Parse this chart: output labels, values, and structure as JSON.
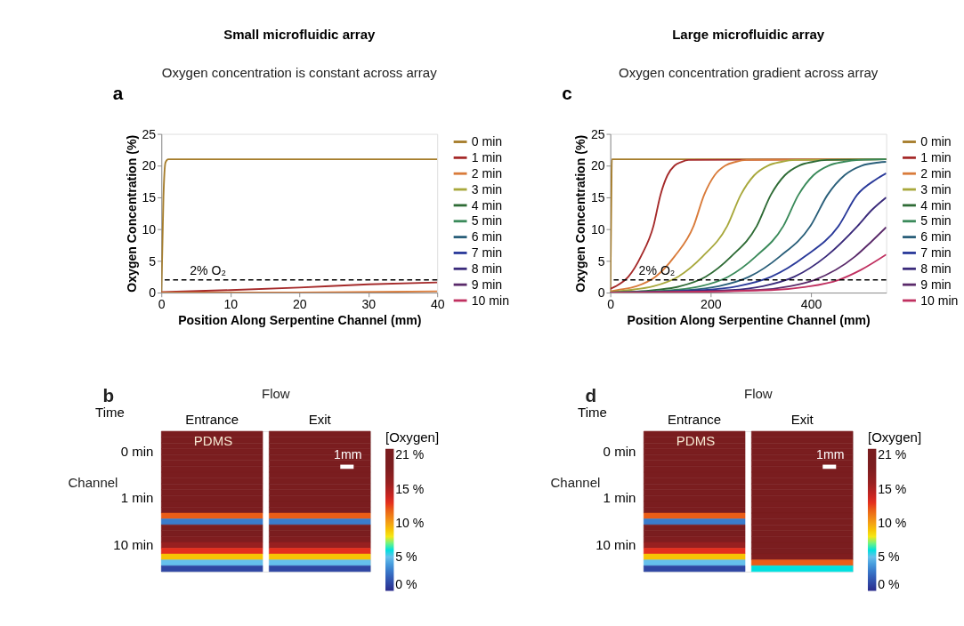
{
  "chart_data": [
    {
      "type": "line",
      "title": "Small microfluidic array",
      "subtitle": "Oxygen concentration is constant across array",
      "xlabel": "Position Along Serpentine Channel (mm)",
      "ylabel": "Oxygen Concentration (%)",
      "xlim": [
        0,
        40
      ],
      "xticks": [
        0,
        10,
        20,
        30,
        40
      ],
      "ylim": [
        0,
        25
      ],
      "yticks": [
        0,
        5,
        10,
        15,
        20,
        25
      ],
      "grid": false,
      "legend": "right",
      "marker": "none",
      "line_style": "solid",
      "annotations": [
        "a"
      ],
      "ref_lines": [
        {
          "axis": "y",
          "value": 2,
          "label": "2% O₂",
          "color": "#000000",
          "line_style": "dashed"
        }
      ],
      "series": [
        {
          "name": "0 min",
          "color": "#a57c2a",
          "x": [
            0,
            0.3,
            0.6,
            1,
            40
          ],
          "values": [
            0,
            15,
            20.5,
            21,
            21
          ]
        },
        {
          "name": "1 min",
          "color": "#a52a2a",
          "x": [
            0,
            10,
            20,
            30,
            40
          ],
          "values": [
            0.1,
            0.4,
            0.8,
            1.3,
            1.6
          ]
        },
        {
          "name": "2 min",
          "color": "#d97b3a",
          "x": [
            0,
            20,
            40
          ],
          "values": [
            0,
            0,
            0.2
          ]
        },
        {
          "name": "3 min",
          "color": "#a8a83c",
          "values": [
            null
          ]
        },
        {
          "name": "4 min",
          "color": "#2e6b35",
          "values": [
            null
          ]
        },
        {
          "name": "5 min",
          "color": "#3a8a5a",
          "values": [
            null
          ]
        },
        {
          "name": "6 min",
          "color": "#2a5f7a",
          "values": [
            null
          ]
        },
        {
          "name": "7 min",
          "color": "#2a3a9a",
          "values": [
            null
          ]
        },
        {
          "name": "8 min",
          "color": "#3a2a7a",
          "values": [
            null
          ]
        },
        {
          "name": "9 min",
          "color": "#5a2a6a",
          "values": [
            null
          ]
        },
        {
          "name": "10 min",
          "color": "#c03060",
          "values": [
            null
          ]
        }
      ]
    },
    {
      "type": "line",
      "title": "Large microfluidic array",
      "subtitle": "Oxygen concentration gradient across array",
      "xlabel": "Position Along Serpentine Channel (mm)",
      "ylabel": "Oxygen Concentration (%)",
      "xlim": [
        0,
        550
      ],
      "xticks": [
        0,
        200,
        400
      ],
      "ylim": [
        0,
        25
      ],
      "yticks": [
        0,
        5,
        10,
        15,
        20,
        25
      ],
      "grid": false,
      "legend": "right",
      "marker": "none",
      "line_style": "solid",
      "annotations": [
        "c"
      ],
      "ref_lines": [
        {
          "axis": "y",
          "value": 2,
          "label": "2% O₂",
          "color": "#000000",
          "line_style": "dashed"
        }
      ],
      "series": [
        {
          "name": "0 min",
          "color": "#a57c2a",
          "x": [
            0,
            2,
            3,
            550
          ],
          "values": [
            0,
            15,
            21,
            21
          ]
        },
        {
          "name": "1 min",
          "color": "#a52a2a",
          "x": [
            0,
            11,
            36,
            61,
            86,
            100,
            114,
            128,
            142,
            156,
            550
          ],
          "values": [
            0.6,
            1.0,
            2.5,
            5.7,
            10.5,
            15.4,
            18.5,
            20.0,
            20.6,
            20.9,
            21
          ]
        },
        {
          "name": "2 min",
          "color": "#d97b3a",
          "x": [
            0,
            14,
            52,
            90,
            128,
            166,
            187,
            208,
            229,
            250,
            271,
            550
          ],
          "values": [
            0.2,
            0.4,
            1.0,
            2.5,
            5.7,
            10.5,
            15.4,
            18.5,
            20.0,
            20.6,
            20.9,
            21
          ]
        },
        {
          "name": "3 min",
          "color": "#a8a83c",
          "x": [
            0,
            37,
            86,
            135,
            184,
            233,
            260,
            287,
            314,
            341,
            368,
            550
          ],
          "values": [
            0.1,
            0.4,
            1.0,
            2.5,
            5.7,
            10.5,
            15.4,
            18.5,
            20.0,
            20.6,
            20.9,
            21
          ]
        },
        {
          "name": "4 min",
          "color": "#2e6b35",
          "x": [
            0,
            88,
            139,
            190,
            241,
            292,
            320,
            348,
            376,
            404,
            432,
            550
          ],
          "values": [
            0,
            0.4,
            1.0,
            2.5,
            5.7,
            10.5,
            15.4,
            18.5,
            20.0,
            20.6,
            20.9,
            21
          ]
        },
        {
          "name": "5 min",
          "color": "#3a8a5a",
          "x": [
            0,
            125,
            180,
            235,
            290,
            345,
            375,
            405,
            435,
            465,
            495,
            550
          ],
          "values": [
            0,
            0.4,
            1.0,
            2.5,
            5.7,
            10.5,
            15.4,
            18.5,
            20.0,
            20.6,
            20.9,
            21
          ]
        },
        {
          "name": "6 min",
          "color": "#2a5f7a",
          "x": [
            0,
            155,
            216,
            277,
            338,
            399,
            433,
            467,
            501,
            535,
            550
          ],
          "values": [
            0,
            0.4,
            1.0,
            2.5,
            5.7,
            10.5,
            15.4,
            18.5,
            20.0,
            20.5,
            20.6
          ]
        },
        {
          "name": "7 min",
          "color": "#2a3a9a",
          "x": [
            0,
            187,
            254,
            321,
            388,
            455,
            492,
            529,
            550
          ],
          "values": [
            0,
            0.4,
            1.0,
            2.5,
            5.7,
            10.5,
            15.4,
            17.8,
            18.8
          ]
        },
        {
          "name": "8 min",
          "color": "#3a2a7a",
          "x": [
            0,
            241,
            304,
            367,
            430,
            493,
            521,
            550
          ],
          "values": [
            0,
            0.4,
            1.0,
            2.5,
            5.7,
            10.5,
            13.0,
            15.0
          ]
        },
        {
          "name": "9 min",
          "color": "#5a2a6a",
          "x": [
            0,
            293,
            358,
            407,
            488,
            520,
            550
          ],
          "values": [
            0,
            0.4,
            1.0,
            2.0,
            5.7,
            8.0,
            10.3
          ]
        },
        {
          "name": "10 min",
          "color": "#c03060",
          "x": [
            0,
            320,
            390,
            455,
            500,
            550
          ],
          "values": [
            0,
            0.4,
            0.9,
            2.0,
            3.6,
            6.0
          ]
        }
      ]
    },
    {
      "type": "heatmap",
      "ylabel": "Time",
      "clabel": "[Oxygen]",
      "clim": [
        0,
        21
      ],
      "cticks": [
        {
          "value": 0,
          "label": "0 %"
        },
        {
          "value": 5,
          "label": "5 %"
        },
        {
          "value": 10,
          "label": "10 %"
        },
        {
          "value": 15,
          "label": "15 %"
        },
        {
          "value": 21,
          "label": "21 %"
        }
      ],
      "annotations": [
        "b",
        "Flow",
        "PDMS",
        "1mm",
        "Channel"
      ],
      "categories": [
        "Entrance",
        "Exit"
      ],
      "y_categories": [
        null,
        null,
        null,
        "0 min",
        null,
        null,
        null,
        null,
        null,
        null,
        null,
        "1 min",
        null,
        null,
        null,
        null,
        null,
        null,
        null,
        "10 min",
        null,
        null,
        null,
        null
      ],
      "cells": [
        [
          21,
          21
        ],
        [
          21,
          21
        ],
        [
          21,
          21
        ],
        [
          21,
          21
        ],
        [
          21,
          21
        ],
        [
          21,
          21
        ],
        [
          21,
          21
        ],
        [
          21,
          21
        ],
        [
          21,
          21
        ],
        [
          21,
          21
        ],
        [
          21,
          21
        ],
        [
          21,
          21
        ],
        [
          20.5,
          20.5
        ],
        [
          19,
          19
        ],
        [
          12,
          12
        ],
        [
          3,
          3
        ],
        [
          20.5,
          20.5
        ],
        [
          19.5,
          19.5
        ],
        [
          18,
          18
        ],
        [
          16,
          16
        ],
        [
          13,
          13
        ],
        [
          9,
          9
        ],
        [
          5,
          5
        ],
        [
          1,
          1
        ]
      ]
    },
    {
      "type": "heatmap",
      "ylabel": "Time",
      "clabel": "[Oxygen]",
      "clim": [
        0,
        21
      ],
      "cticks": [
        {
          "value": 0,
          "label": "0 %"
        },
        {
          "value": 5,
          "label": "5 %"
        },
        {
          "value": 10,
          "label": "10 %"
        },
        {
          "value": 15,
          "label": "15 %"
        },
        {
          "value": 21,
          "label": "21 %"
        }
      ],
      "annotations": [
        "d",
        "Flow",
        "PDMS",
        "1mm",
        "Channel"
      ],
      "categories": [
        "Entrance",
        "Exit"
      ],
      "y_categories": [
        null,
        null,
        null,
        "0 min",
        null,
        null,
        null,
        null,
        null,
        null,
        null,
        "1 min",
        null,
        null,
        null,
        null,
        null,
        null,
        null,
        "10 min",
        null,
        null,
        null,
        null
      ],
      "cells": [
        [
          21,
          21
        ],
        [
          21,
          21
        ],
        [
          21,
          21
        ],
        [
          21,
          21
        ],
        [
          21,
          21
        ],
        [
          21,
          21
        ],
        [
          21,
          21
        ],
        [
          21,
          21
        ],
        [
          21,
          21
        ],
        [
          21,
          21
        ],
        [
          21,
          21
        ],
        [
          21,
          21
        ],
        [
          20.5,
          21
        ],
        [
          19,
          21
        ],
        [
          12,
          21
        ],
        [
          3,
          21
        ],
        [
          20.5,
          21
        ],
        [
          19.5,
          21
        ],
        [
          18,
          21
        ],
        [
          16,
          20.5
        ],
        [
          13,
          20
        ],
        [
          9,
          18
        ],
        [
          5,
          12
        ],
        [
          1,
          6
        ]
      ]
    }
  ]
}
